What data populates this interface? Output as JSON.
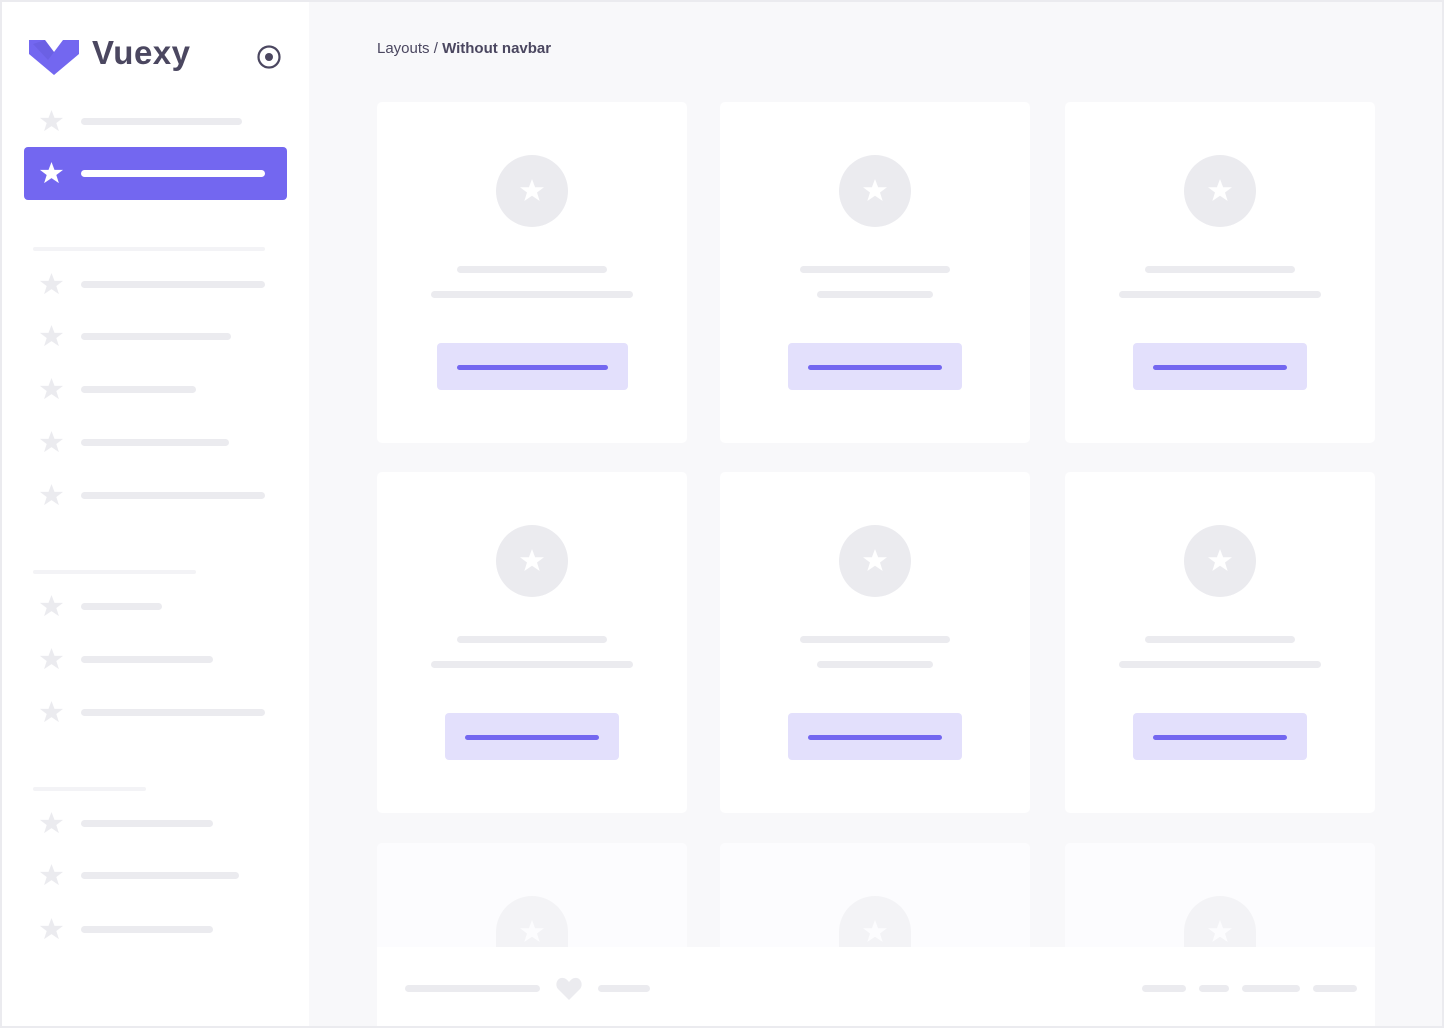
{
  "brand": {
    "name": "Vuexy",
    "color": "#7367f0"
  },
  "sidebar": {
    "toggle_icon": "radio-circle-icon",
    "item_icon": "star-icon",
    "active_index": 1
  },
  "breadcrumb": {
    "parent": "Layouts",
    "separator": " / ",
    "current": "Without navbar"
  },
  "cards": {
    "icon": "star-icon",
    "count": 9
  },
  "footer": {
    "icon": "heart-icon"
  },
  "colors": {
    "accent": "#7367f0",
    "accent_light": "#e3e0fc",
    "skeleton": "#ebebef",
    "background": "#f8f8fa"
  }
}
